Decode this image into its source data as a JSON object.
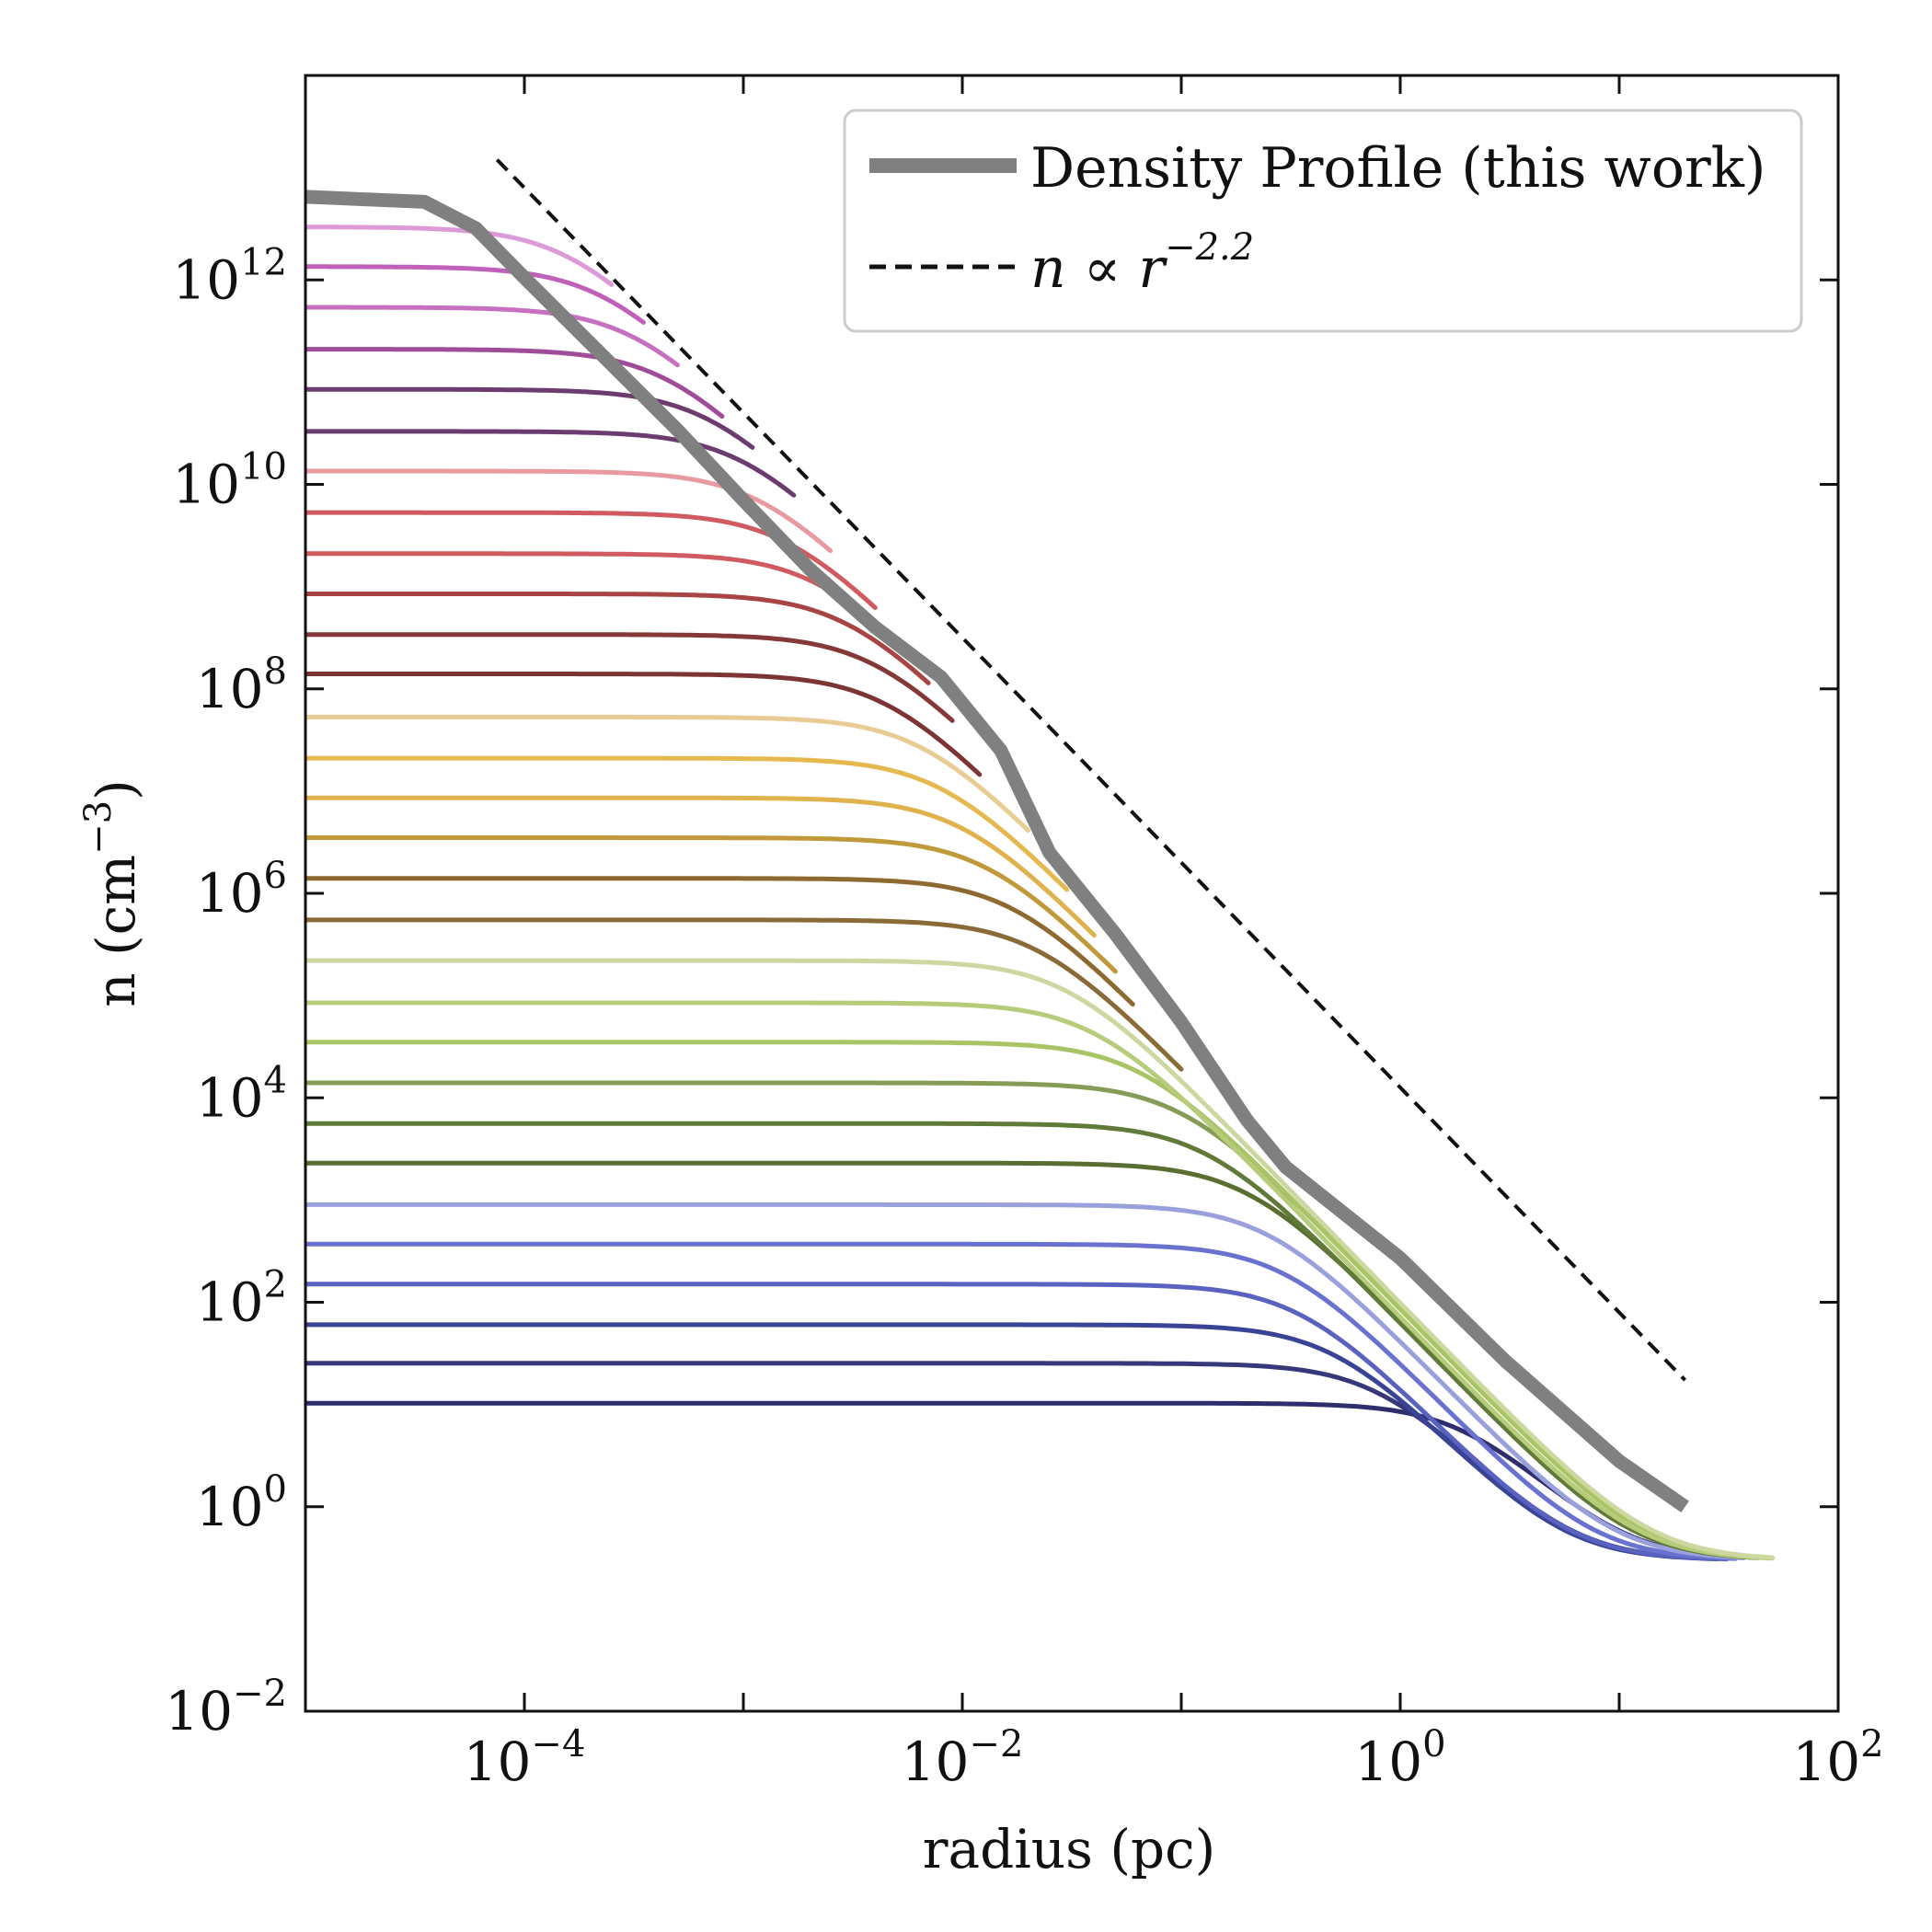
{
  "chart_data": {
    "type": "line",
    "x_scale": "log",
    "y_scale": "log",
    "xlabel": "radius (pc)",
    "ylabel_prefix": "n (cm",
    "ylabel_sup": "−3",
    "ylabel_suffix": ")",
    "xlim": [
      1e-05,
      100
    ],
    "ylim": [
      0.01,
      100000000000000.0
    ],
    "x_ticks": [
      {
        "value": 0.0001,
        "base": "10",
        "exp": "−4"
      },
      {
        "value": 0.01,
        "base": "10",
        "exp": "−2"
      },
      {
        "value": 1,
        "base": "10",
        "exp": "0"
      },
      {
        "value": 100,
        "base": "10",
        "exp": "2"
      }
    ],
    "y_ticks": [
      {
        "value": 0.01,
        "base": "10",
        "exp": "−2"
      },
      {
        "value": 1,
        "base": "10",
        "exp": "0"
      },
      {
        "value": 100,
        "base": "10",
        "exp": "2"
      },
      {
        "value": 10000.0,
        "base": "10",
        "exp": "4"
      },
      {
        "value": 1000000.0,
        "base": "10",
        "exp": "6"
      },
      {
        "value": 100000000.0,
        "base": "10",
        "exp": "8"
      },
      {
        "value": 10000000000.0,
        "base": "10",
        "exp": "10"
      },
      {
        "value": 1000000000000.0,
        "base": "10",
        "exp": "12"
      }
    ],
    "grid": false,
    "legend_position": "top-right",
    "legend": [
      {
        "label": "Density Profile (this work)",
        "style": "thick-gray"
      },
      {
        "label_prefix": "n ∝ r",
        "label_sup": "−2.2",
        "style": "dashed-black"
      }
    ],
    "density_profile": {
      "color": "#808080",
      "points": [
        [
          1e-05,
          6500000000000.0
        ],
        [
          3.5e-05,
          5800000000000.0
        ],
        [
          6e-05,
          3200000000000.0
        ],
        [
          0.0001,
          1050000000000.0
        ],
        [
          0.0002,
          240000000000.0
        ],
        [
          0.0005,
          34000000000.0
        ],
        [
          0.001,
          7000000000.0
        ],
        [
          0.002,
          1500000000.0
        ],
        [
          0.004,
          400000000.0
        ],
        [
          0.008,
          130000000.0
        ],
        [
          0.015,
          25000000.0
        ],
        [
          0.025,
          2500000.0
        ],
        [
          0.05,
          400000.0
        ],
        [
          0.1,
          55000.0
        ],
        [
          0.2,
          6000.0
        ],
        [
          0.3,
          2100.0
        ],
        [
          1,
          270.0
        ],
        [
          3,
          27.0
        ],
        [
          10,
          2.8
        ],
        [
          20,
          1.0
        ]
      ]
    },
    "power_law": {
      "slope": -2.2,
      "x_range": [
        7.5e-05,
        20
      ],
      "y_at_x_range_start": 15000000000000.0
    },
    "profiles": [
      {
        "n0": 10,
        "rc": 2,
        "rend": 20,
        "color": "#2e2e6e"
      },
      {
        "n0": 25,
        "rc": 0.8,
        "rend": 25,
        "color": "#36387a"
      },
      {
        "n0": 60,
        "rc": 0.5,
        "rend": 28,
        "color": "#3a4496"
      },
      {
        "n0": 150,
        "rc": 0.35,
        "rend": 31,
        "color": "#5a62c0"
      },
      {
        "n0": 370,
        "rc": 0.3,
        "rend": 34,
        "color": "#6a72d0"
      },
      {
        "n0": 900,
        "rc": 0.25,
        "rend": 37,
        "color": "#9aa0dc"
      },
      {
        "n0": 2300,
        "rc": 0.2,
        "rend": 40,
        "color": "#5a6e32"
      },
      {
        "n0": 5600,
        "rc": 0.13,
        "rend": 43,
        "color": "#607a3a"
      },
      {
        "n0": 14000,
        "rc": 0.1,
        "rend": 46,
        "color": "#859c56"
      },
      {
        "n0": 35000,
        "rc": 0.065,
        "rend": 49,
        "color": "#a8c464"
      },
      {
        "n0": 85000,
        "rc": 0.04,
        "rend": 50,
        "color": "#b6cc7a"
      },
      {
        "n0": 220000,
        "rc": 0.03,
        "rend": 50,
        "color": "#ccd8a0"
      },
      {
        "n0": 550000,
        "rc": 0.022,
        "rend": 0.1,
        "color": "#8a6a36"
      },
      {
        "n0": 1400000,
        "rc": 0.017,
        "rend": 0.06,
        "color": "#8e6a30"
      },
      {
        "n0": 3500000,
        "rc": 0.013,
        "rend": 0.05,
        "color": "#c09a3a"
      },
      {
        "n0": 8600000,
        "rc": 0.01,
        "rend": 0.04,
        "color": "#e0b24c"
      },
      {
        "n0": 21000000,
        "rc": 0.008,
        "rend": 0.03,
        "color": "#e6b850"
      },
      {
        "n0": 53000000,
        "rc": 0.0065,
        "rend": 0.02,
        "color": "#e8cc94"
      },
      {
        "n0": 140000000,
        "rc": 0.0045,
        "rend": 0.012,
        "color": "#7c3434"
      },
      {
        "n0": 340000000,
        "rc": 0.004,
        "rend": 0.009,
        "color": "#843838"
      },
      {
        "n0": 850000000,
        "rc": 0.003,
        "rend": 0.007,
        "color": "#a84444"
      },
      {
        "n0": 2100000000,
        "rc": 0.0022,
        "rend": 0.005,
        "color": "#d05a60"
      },
      {
        "n0": 5300000000,
        "rc": 0.0016,
        "rend": 0.004,
        "color": "#d05a60"
      },
      {
        "n0": 13500000000,
        "rc": 0.0012,
        "rend": 0.0025,
        "color": "#e89aa0"
      },
      {
        "n0": 33000000000,
        "rc": 0.001,
        "rend": 0.0017,
        "color": "#6c3c70"
      },
      {
        "n0": 85000000000,
        "rc": 0.0007,
        "rend": 0.0011,
        "color": "#6c3c70"
      },
      {
        "n0": 210000000000,
        "rc": 0.00045,
        "rend": 0.0008,
        "color": "#a04c98"
      },
      {
        "n0": 540000000000,
        "rc": 0.00032,
        "rend": 0.0005,
        "color": "#c870c0"
      },
      {
        "n0": 1350000000000,
        "rc": 0.00023,
        "rend": 0.00035,
        "color": "#c060b8"
      },
      {
        "n0": 3300000000000,
        "rc": 0.00016,
        "rend": 0.00025,
        "color": "#dc9ad8"
      }
    ]
  }
}
